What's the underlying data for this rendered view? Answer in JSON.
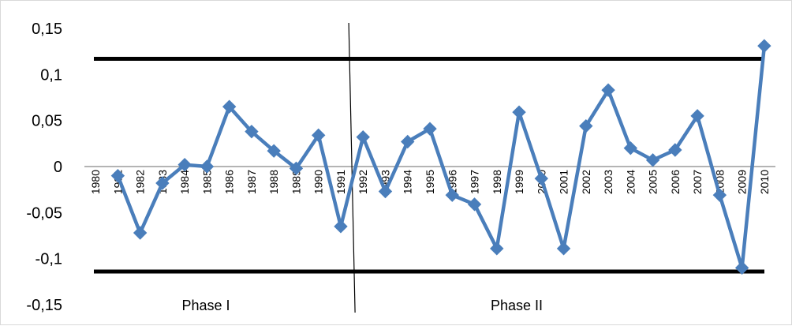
{
  "chart_data": {
    "type": "line",
    "title": "",
    "xlabel": "",
    "ylabel": "",
    "x": [
      "1980",
      "1981",
      "1982",
      "1983",
      "1984",
      "1985",
      "1986",
      "1987",
      "1988",
      "1989",
      "1990",
      "1991",
      "1992",
      "1993",
      "1994",
      "1995",
      "1996",
      "1997",
      "1998",
      "1999",
      "2000",
      "2001",
      "2002",
      "2003",
      "2004",
      "2005",
      "2006",
      "2007",
      "2008",
      "2009",
      "2010"
    ],
    "y_ticks": [
      "0,15",
      "0,1",
      "0,05",
      "0",
      "-0,05",
      "-0,1",
      "-0,15"
    ],
    "ylim": [
      -0.15,
      0.15
    ],
    "series": [
      {
        "values": [
          null,
          -0.01,
          -0.072,
          -0.018,
          0.002,
          0.0,
          0.065,
          0.038,
          0.017,
          -0.002,
          0.034,
          -0.065,
          0.032,
          -0.027,
          0.027,
          0.041,
          -0.031,
          -0.041,
          -0.089,
          0.059,
          -0.013,
          -0.089,
          0.044,
          0.083,
          0.02,
          0.007,
          0.018,
          0.055,
          -0.031,
          -0.11,
          0.131
        ],
        "color": "#4a7ebb",
        "marker": "diamond"
      }
    ],
    "control_limits": {
      "upper": 0.117,
      "lower": -0.114,
      "color": "#000000"
    },
    "phase_divider": {
      "between": [
        "1991",
        "1992"
      ]
    },
    "phase_labels": [
      "Phase I",
      "Phase II"
    ],
    "grid": false,
    "legend": "none"
  }
}
